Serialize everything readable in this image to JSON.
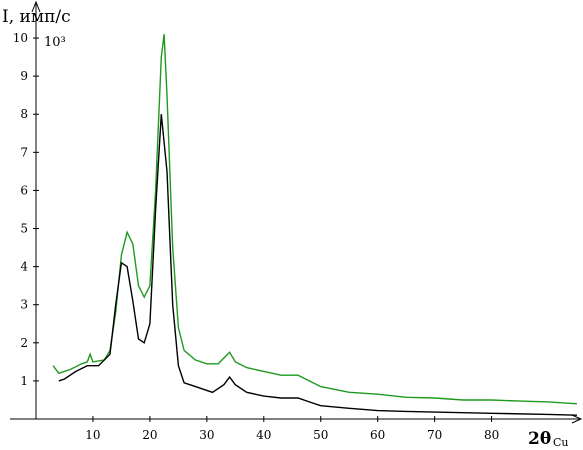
{
  "chart_data": {
    "type": "line",
    "y_label": "I, имп/с",
    "y_unit": "10³",
    "x_label": "2θ",
    "x_label_sub": "Cu",
    "xlim": [
      0,
      95
    ],
    "ylim": [
      0,
      10.5
    ],
    "xticks": [
      10,
      20,
      30,
      40,
      50,
      60,
      70,
      80
    ],
    "yticks": [
      1,
      2,
      3,
      4,
      5,
      6,
      7,
      8,
      9,
      10
    ],
    "series": [
      {
        "color": "#1f9a1f",
        "x": [
          3,
          4,
          6,
          8,
          9,
          9.5,
          10,
          12,
          13,
          14,
          15,
          16,
          17,
          18,
          19,
          20,
          21,
          22,
          22.5,
          23,
          24,
          25,
          26,
          28,
          30,
          32,
          33,
          34,
          35,
          37,
          40,
          43,
          46,
          48,
          50,
          55,
          60,
          65,
          70,
          75,
          80,
          85,
          90,
          95
        ],
        "values": [
          1.4,
          1.2,
          1.3,
          1.45,
          1.5,
          1.7,
          1.5,
          1.55,
          1.8,
          2.8,
          4.3,
          4.9,
          4.6,
          3.5,
          3.2,
          3.5,
          6,
          9.5,
          10.1,
          8.5,
          4.5,
          2.4,
          1.8,
          1.55,
          1.45,
          1.45,
          1.6,
          1.75,
          1.5,
          1.35,
          1.25,
          1.15,
          1.15,
          1.0,
          0.85,
          0.7,
          0.65,
          0.57,
          0.55,
          0.5,
          0.5,
          0.47,
          0.45,
          0.4
        ]
      },
      {
        "color": "#000000",
        "x": [
          4,
          5,
          7,
          9,
          11,
          13,
          14,
          15,
          16,
          17,
          18,
          19,
          20,
          21,
          22,
          23,
          24,
          25,
          26,
          28,
          30,
          31,
          33,
          34,
          35,
          37,
          40,
          43,
          46,
          48,
          50,
          55,
          60,
          65,
          70,
          80,
          90,
          95
        ],
        "values": [
          1.0,
          1.05,
          1.25,
          1.4,
          1.4,
          1.7,
          3.0,
          4.1,
          4.0,
          3.1,
          2.1,
          2.0,
          2.5,
          5.5,
          8.0,
          6.5,
          3.0,
          1.4,
          0.95,
          0.85,
          0.75,
          0.7,
          0.9,
          1.1,
          0.9,
          0.7,
          0.6,
          0.55,
          0.55,
          0.45,
          0.35,
          0.28,
          0.22,
          0.2,
          0.18,
          0.15,
          0.12,
          0.1
        ]
      }
    ]
  }
}
